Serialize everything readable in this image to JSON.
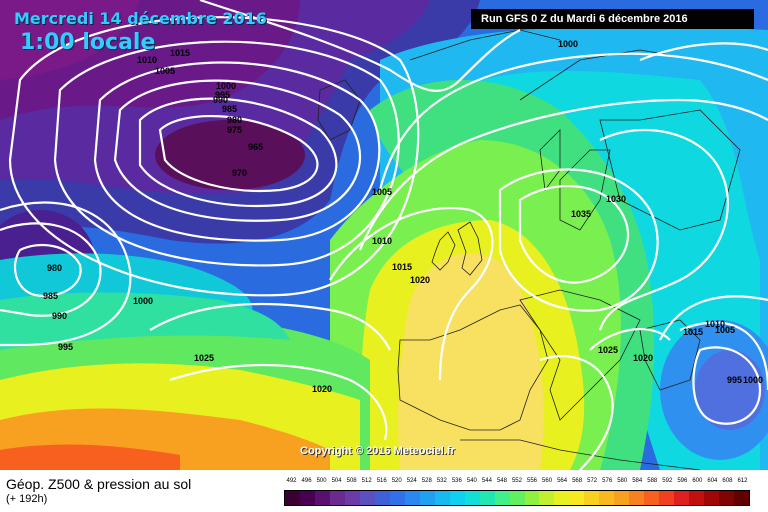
{
  "header": {
    "date": "Mercredi 14 décembre 2016",
    "local_time": "1:00 locale",
    "run_info": "Run GFS 0 Z du Mardi 6 décembre 2016"
  },
  "map": {
    "copyright": "Copyright © 2016 Meteociel.fr",
    "pressure_labels": [
      "1000",
      "1015",
      "1010",
      "1005",
      "1000",
      "995",
      "990",
      "985",
      "980",
      "975",
      "965",
      "970",
      "1005",
      "1010",
      "1015",
      "1020",
      "980",
      "985",
      "990",
      "995",
      "1000",
      "1025",
      "1020",
      "1035",
      "1030",
      "1025",
      "1020",
      "1015",
      "1010",
      "1005",
      "995",
      "1000"
    ]
  },
  "legend": {
    "title": "Géop. Z500 & pression au sol",
    "subtitle": "(+ 192h)",
    "scale_labels": [
      "492",
      "496",
      "500",
      "504",
      "508",
      "512",
      "516",
      "520",
      "524",
      "528",
      "532",
      "536",
      "540",
      "544",
      "548",
      "552",
      "556",
      "560",
      "564",
      "568",
      "572",
      "576",
      "580",
      "584",
      "588",
      "592",
      "596",
      "600",
      "604",
      "608",
      "612"
    ],
    "scale_colors": [
      "#3a0032",
      "#4a0050",
      "#5a1070",
      "#6a2a90",
      "#6e3aa8",
      "#5a50c0",
      "#4060d8",
      "#3070e8",
      "#2a88f0",
      "#20a0f0",
      "#18b8f0",
      "#10d0f0",
      "#10e0d8",
      "#20e8b0",
      "#40f088",
      "#60f060",
      "#90f040",
      "#c0f030",
      "#e8f020",
      "#f8e820",
      "#f8d020",
      "#f8b820",
      "#f8a020",
      "#f88020",
      "#f86020",
      "#f04020",
      "#e02020",
      "#c01010",
      "#a00808",
      "#800404",
      "#600000"
    ]
  }
}
